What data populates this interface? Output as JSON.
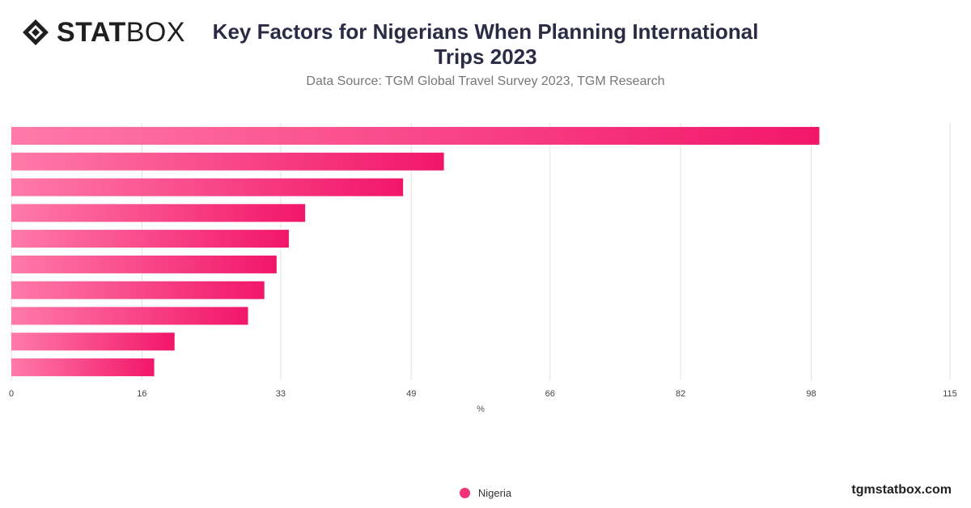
{
  "brand": {
    "logo_bold": "STAT",
    "logo_light": "BOX",
    "site": "tgmstatbox.com"
  },
  "colors": {
    "bar_start": "#ff7aa8",
    "bar_end": "#f2166a",
    "grid": "#e2e2e2",
    "legend_dot": "#f4347a"
  },
  "chart_data": {
    "type": "bar",
    "orientation": "horizontal",
    "title": "Key Factors for Nigerians When Planning International Trips 2023",
    "subtitle": "Data Source: TGM Global Travel Survey 2023, TGM Research",
    "xlabel": "%",
    "xlim": [
      0,
      115
    ],
    "xticks": [
      0,
      16,
      33,
      49,
      66,
      82,
      98,
      115
    ],
    "grid": true,
    "legend_position": "bottom-center",
    "series": [
      {
        "name": "Nigeria",
        "values": [
          99,
          53,
          48,
          36,
          34,
          32.5,
          31,
          29,
          20,
          17.5
        ]
      }
    ]
  }
}
